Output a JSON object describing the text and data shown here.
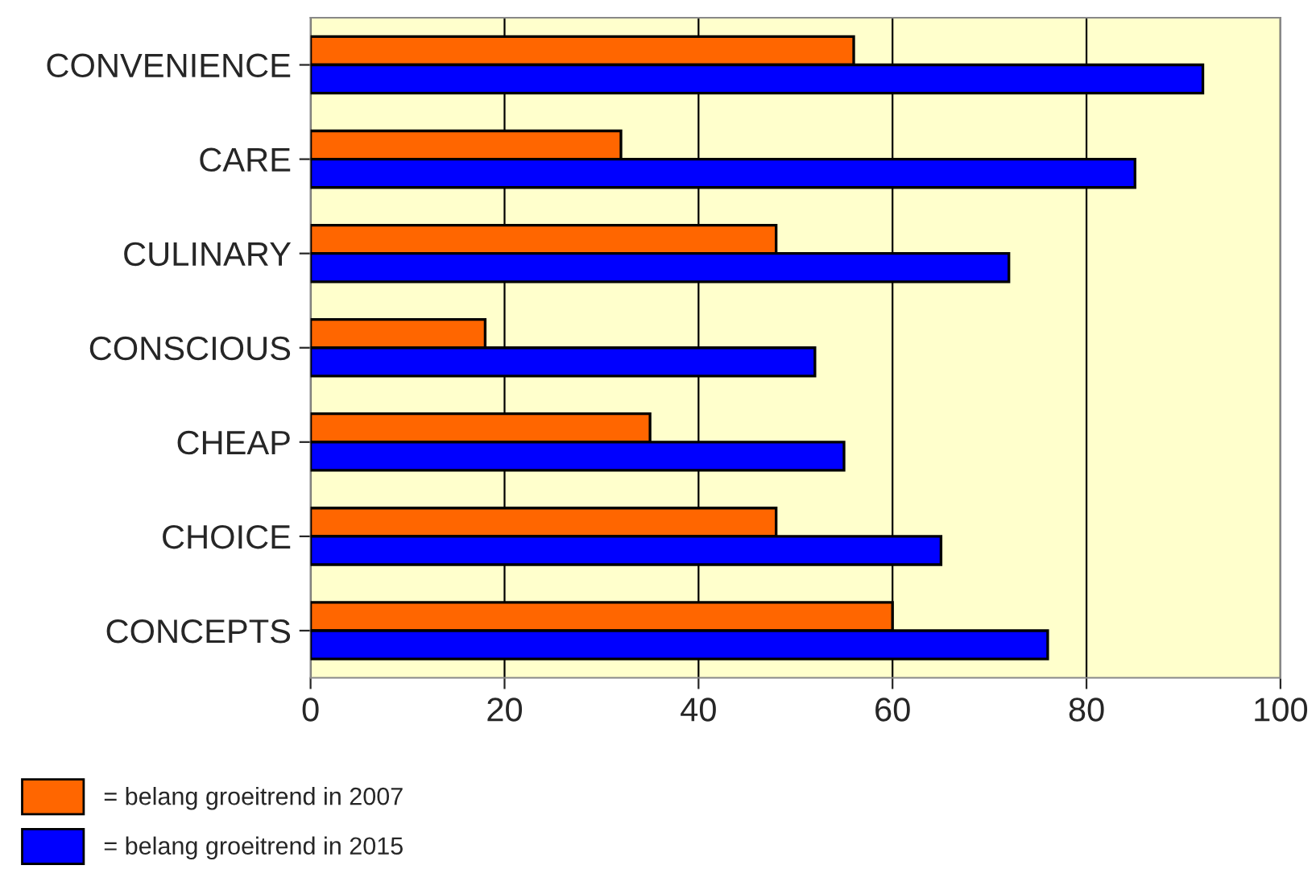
{
  "chart_data": {
    "type": "bar",
    "orientation": "horizontal",
    "categories": [
      "CONVENIENCE",
      "CARE",
      "CULINARY",
      "CONSCIOUS",
      "CHEAP",
      "CHOICE",
      "CONCEPTS"
    ],
    "series": [
      {
        "name": "= belang groeitrend in 2007",
        "color": "#ff6600",
        "values": [
          56,
          32,
          48,
          18,
          35,
          48,
          60
        ]
      },
      {
        "name": "= belang groeitrend in 2015",
        "color": "#0000ff",
        "values": [
          92,
          85,
          72,
          52,
          55,
          65,
          76
        ]
      }
    ],
    "xlim": [
      0,
      100
    ],
    "xticks": [
      0,
      20,
      40,
      60,
      80,
      100
    ],
    "grid": "x",
    "legend": "bottom left"
  }
}
